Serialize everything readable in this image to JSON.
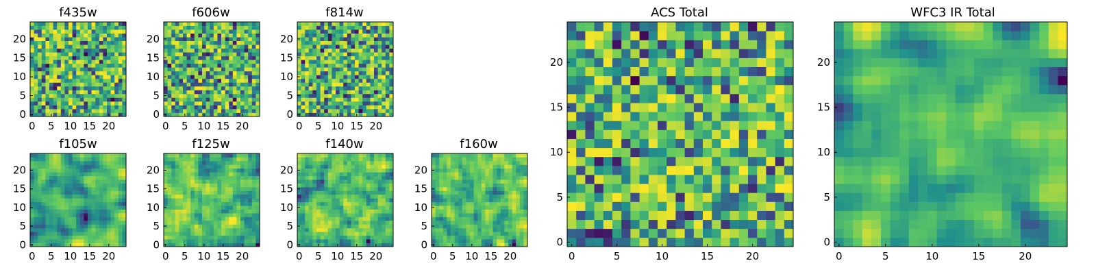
{
  "figure": {
    "description_free": true
  },
  "colors": {
    "colormap": [
      "#440154",
      "#3b528b",
      "#21918c",
      "#5ec962",
      "#fde725"
    ],
    "frame": "#000000"
  },
  "chart_data": [
    {
      "type": "heatmap",
      "title": "f435w",
      "x_ticks": [
        "0",
        "5",
        "10",
        "15",
        "20"
      ],
      "y_ticks": [
        "0",
        "5",
        "10",
        "15",
        "20"
      ],
      "xlim": [
        0,
        25
      ],
      "ylim": [
        0,
        25
      ],
      "size": 25,
      "seed": 11,
      "smooth": 0
    },
    {
      "type": "heatmap",
      "title": "f606w",
      "x_ticks": [
        "0",
        "5",
        "10",
        "15",
        "20"
      ],
      "y_ticks": [
        "0",
        "5",
        "10",
        "15",
        "20"
      ],
      "xlim": [
        0,
        25
      ],
      "ylim": [
        0,
        25
      ],
      "size": 25,
      "seed": 23,
      "smooth": 0
    },
    {
      "type": "heatmap",
      "title": "f814w",
      "x_ticks": [
        "0",
        "5",
        "10",
        "15",
        "20"
      ],
      "y_ticks": [
        "0",
        "5",
        "10",
        "15",
        "20"
      ],
      "xlim": [
        0,
        25
      ],
      "ylim": [
        0,
        25
      ],
      "size": 25,
      "seed": 37,
      "smooth": 0
    },
    {
      "type": "heatmap",
      "title": "f105w",
      "x_ticks": [
        "0",
        "5",
        "10",
        "15",
        "20"
      ],
      "y_ticks": [
        "0",
        "5",
        "10",
        "15",
        "20"
      ],
      "xlim": [
        0,
        25
      ],
      "ylim": [
        0,
        25
      ],
      "size": 25,
      "seed": 41,
      "smooth": 2
    },
    {
      "type": "heatmap",
      "title": "f125w",
      "x_ticks": [
        "0",
        "5",
        "10",
        "15",
        "20"
      ],
      "y_ticks": [
        "0",
        "5",
        "10",
        "15",
        "20"
      ],
      "xlim": [
        0,
        25
      ],
      "ylim": [
        0,
        25
      ],
      "size": 25,
      "seed": 53,
      "smooth": 1
    },
    {
      "type": "heatmap",
      "title": "f140w",
      "x_ticks": [
        "0",
        "5",
        "10",
        "15",
        "20"
      ],
      "y_ticks": [
        "0",
        "5",
        "10",
        "15",
        "20"
      ],
      "xlim": [
        0,
        25
      ],
      "ylim": [
        0,
        25
      ],
      "size": 25,
      "seed": 67,
      "smooth": 1
    },
    {
      "type": "heatmap",
      "title": "f160w",
      "x_ticks": [
        "0",
        "5",
        "10",
        "15",
        "20"
      ],
      "y_ticks": [
        "0",
        "5",
        "10",
        "15",
        "20"
      ],
      "xlim": [
        0,
        25
      ],
      "ylim": [
        0,
        25
      ],
      "size": 25,
      "seed": 79,
      "smooth": 1
    },
    {
      "type": "heatmap",
      "title": "ACS Total",
      "x_ticks": [
        "0",
        "5",
        "10",
        "15",
        "20"
      ],
      "y_ticks": [
        "0",
        "5",
        "10",
        "15",
        "20"
      ],
      "xlim": [
        0,
        25
      ],
      "ylim": [
        0,
        25
      ],
      "size": 25,
      "seed": 97,
      "smooth": 0
    },
    {
      "type": "heatmap",
      "title": "WFC3 IR Total",
      "x_ticks": [
        "0",
        "5",
        "10",
        "15",
        "20"
      ],
      "y_ticks": [
        "0",
        "5",
        "10",
        "15",
        "20"
      ],
      "xlim": [
        0,
        25
      ],
      "ylim": [
        0,
        25
      ],
      "size": 25,
      "seed": 113,
      "smooth": 2
    }
  ]
}
